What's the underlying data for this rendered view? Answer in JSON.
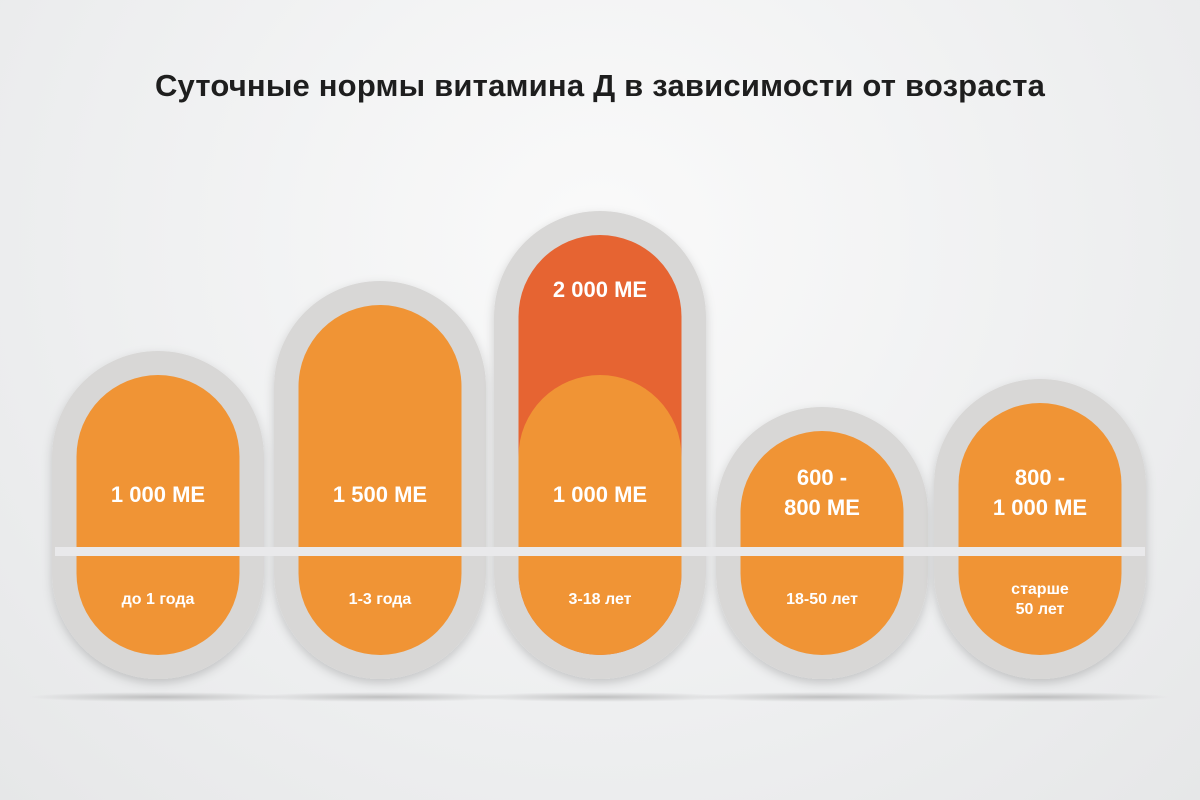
{
  "title": "Суточные нормы витамина Д в зависимости от возраста",
  "colors": {
    "bar": "#f09435",
    "bar_top": "#e66432",
    "outer": "#d8d7d6",
    "divider": "#e9e9eb",
    "label": "#ffffff",
    "title": "#1e1e1e"
  },
  "chart_data": {
    "type": "bar",
    "categories": [
      "до 1 года",
      "1-3 года",
      "3-18 лет",
      "18-50 лет",
      "старше 50 лет"
    ],
    "category_lines": [
      [
        "до 1 года"
      ],
      [
        "1-3 года"
      ],
      [
        "3-18 лет"
      ],
      [
        "18-50 лет"
      ],
      [
        "старше",
        "50 лет"
      ]
    ],
    "series": [
      {
        "values": [
          1000,
          1500,
          1000,
          600,
          800
        ]
      },
      {
        "values": [
          null,
          null,
          2000,
          800,
          1000
        ]
      }
    ],
    "value_labels": [
      [
        "1 000 МЕ"
      ],
      [
        "1 500 МЕ"
      ],
      [
        "1 000 МЕ"
      ],
      [
        "600 -",
        "800 МЕ"
      ],
      [
        "800 -",
        "1 000 МЕ"
      ]
    ],
    "extra_labels": [
      null,
      null,
      "2 000 МЕ",
      null,
      null
    ],
    "unit": "МЕ",
    "title": "Суточные нормы витамина Д в зависимости от возраста",
    "xlabel": "",
    "ylabel": "",
    "grid": false,
    "legend": "none"
  }
}
